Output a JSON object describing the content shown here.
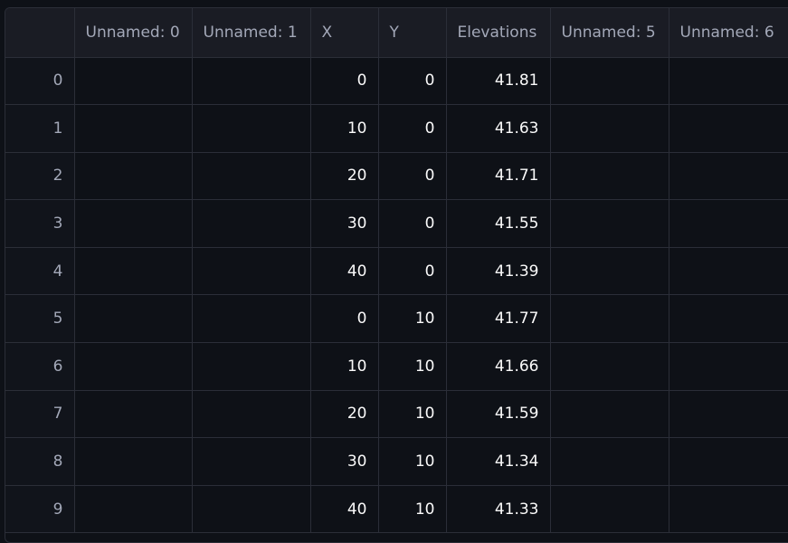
{
  "columns": [
    "",
    "Unnamed: 0",
    "Unnamed: 1",
    "X",
    "Y",
    "Elevations",
    "Unnamed: 5",
    "Unnamed: 6"
  ],
  "rows": [
    {
      "index": "0",
      "cells": [
        "",
        "",
        "0",
        "0",
        "41.81",
        "",
        ""
      ]
    },
    {
      "index": "1",
      "cells": [
        "",
        "",
        "10",
        "0",
        "41.63",
        "",
        ""
      ]
    },
    {
      "index": "2",
      "cells": [
        "",
        "",
        "20",
        "0",
        "41.71",
        "",
        ""
      ]
    },
    {
      "index": "3",
      "cells": [
        "",
        "",
        "30",
        "0",
        "41.55",
        "",
        ""
      ]
    },
    {
      "index": "4",
      "cells": [
        "",
        "",
        "40",
        "0",
        "41.39",
        "",
        ""
      ]
    },
    {
      "index": "5",
      "cells": [
        "",
        "",
        "0",
        "10",
        "41.77",
        "",
        ""
      ]
    },
    {
      "index": "6",
      "cells": [
        "",
        "",
        "10",
        "10",
        "41.66",
        "",
        ""
      ]
    },
    {
      "index": "7",
      "cells": [
        "",
        "",
        "20",
        "10",
        "41.59",
        "",
        ""
      ]
    },
    {
      "index": "8",
      "cells": [
        "",
        "",
        "30",
        "10",
        "41.34",
        "",
        ""
      ]
    },
    {
      "index": "9",
      "cells": [
        "",
        "",
        "40",
        "10",
        "41.33",
        "",
        ""
      ]
    }
  ]
}
